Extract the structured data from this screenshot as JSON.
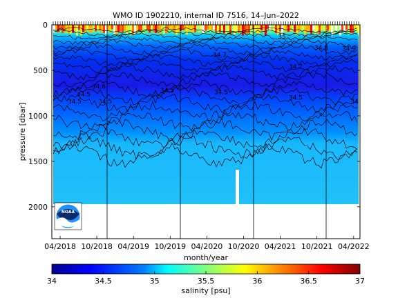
{
  "chart_data": {
    "type": "heatmap",
    "title": "WMO ID 1902210, internal ID 7516, 14–Jun–2022",
    "xlabel": "month/year",
    "ylabel": "pressure [dbar]",
    "colorbar_label": "salinity [psu]",
    "x_ticks": [
      "04/2018",
      "10/2018",
      "04/2019",
      "10/2019",
      "04/2020",
      "10/2020",
      "04/2021",
      "10/2021",
      "04/2022"
    ],
    "y_ticks": [
      "0",
      "500",
      "1000",
      "1500",
      "2000"
    ],
    "ylim": [
      0,
      2350
    ],
    "colorbar_ticks": [
      "34",
      "34.5",
      "35",
      "35.5",
      "36",
      "36.5",
      "37"
    ],
    "color_range": [
      34,
      37
    ],
    "colormap": [
      "#00008c",
      "#0000ff",
      "#0080ff",
      "#00ffff",
      "#80ff80",
      "#ffff00",
      "#ff8000",
      "#ff0000",
      "#800000"
    ],
    "contour_labels": [
      "34.6",
      "34.5",
      "34.5",
      "34.5",
      "34.5",
      "34.5",
      "34.5",
      "34.7",
      "34.7",
      "34.8",
      "34.9",
      "35",
      "34"
    ],
    "profile_depth_max": 2000,
    "grid": false
  },
  "logo": {
    "text": "NOAA"
  }
}
